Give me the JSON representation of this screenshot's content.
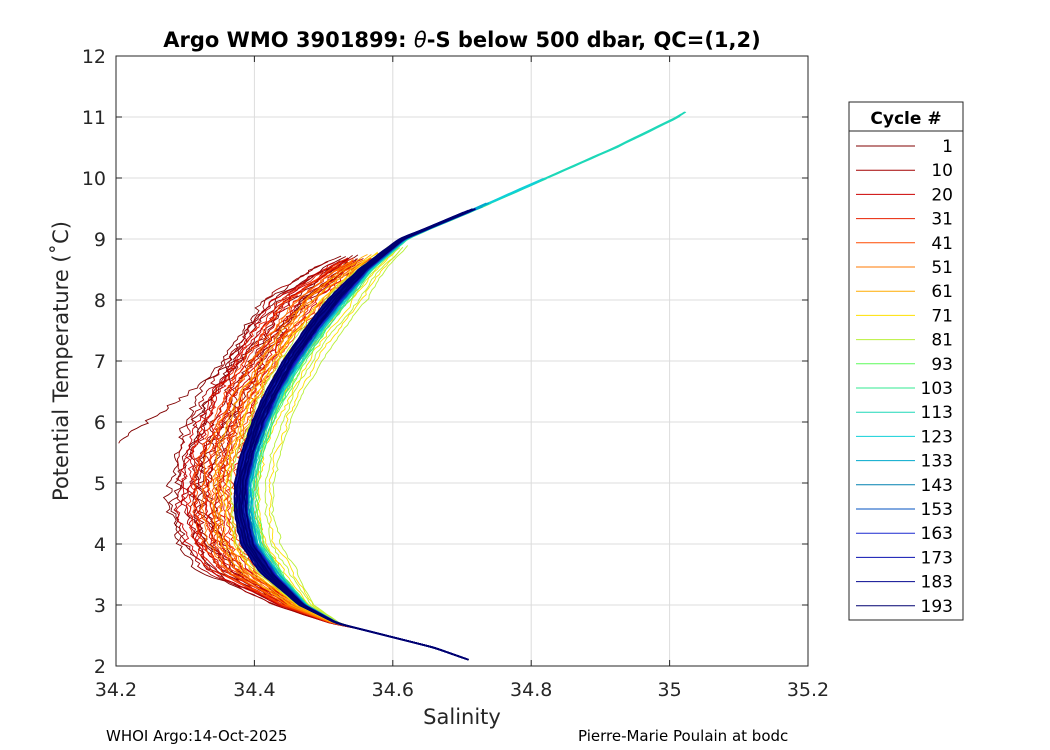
{
  "chart_data": {
    "type": "line",
    "title_prefix": "Argo WMO 3901899: ",
    "title_theta": "θ",
    "title_suffix": "-S below 500 dbar,  QC=(1,2)",
    "xlabel": "Salinity",
    "ylabel": "Potential Temperature (˚C)",
    "xlim": [
      34.2,
      35.2
    ],
    "ylim": [
      2,
      12
    ],
    "xticks": [
      34.2,
      34.4,
      34.6,
      34.8,
      35,
      35.2
    ],
    "xtick_labels": [
      "34.2",
      "34.4",
      "34.6",
      "34.8",
      "35",
      "35.2"
    ],
    "yticks": [
      2,
      3,
      4,
      5,
      6,
      7,
      8,
      9,
      10,
      11,
      12
    ],
    "ytick_labels": [
      "2",
      "3",
      "4",
      "5",
      "6",
      "7",
      "8",
      "9",
      "10",
      "11",
      "12"
    ],
    "grid": true,
    "legend_title": "Cycle #",
    "legend_position": "right-outside",
    "series": [
      {
        "name": "1",
        "color": "#800000",
        "s_min": 34.39,
        "t_top": 8.75,
        "offset": -0.075,
        "noise": 0.02,
        "outlier": true
      },
      {
        "name": "10",
        "color": "#a30000",
        "s_min": 34.39,
        "t_top": 8.7,
        "offset": -0.07,
        "noise": 0.018
      },
      {
        "name": "20",
        "color": "#cc0000",
        "s_min": 34.39,
        "t_top": 8.7,
        "offset": -0.06,
        "noise": 0.016
      },
      {
        "name": "31",
        "color": "#e82000",
        "s_min": 34.39,
        "t_top": 8.7,
        "offset": -0.05,
        "noise": 0.015
      },
      {
        "name": "41",
        "color": "#ff4a00",
        "s_min": 34.39,
        "t_top": 8.7,
        "offset": -0.04,
        "noise": 0.014
      },
      {
        "name": "51",
        "color": "#ff7a00",
        "s_min": 34.39,
        "t_top": 8.7,
        "offset": -0.03,
        "noise": 0.012
      },
      {
        "name": "61",
        "color": "#ffab00",
        "s_min": 34.39,
        "t_top": 8.8,
        "offset": -0.015,
        "noise": 0.01
      },
      {
        "name": "71",
        "color": "#ffe000",
        "s_min": 34.39,
        "t_top": 8.8,
        "offset": 0.005,
        "noise": 0.008
      },
      {
        "name": "81",
        "color": "#b8f03a",
        "s_min": 34.39,
        "t_top": 8.9,
        "offset": 0.012,
        "noise": 0.006
      },
      {
        "name": "93",
        "color": "#5dfb5a",
        "s_min": 34.39,
        "t_top": 9.6,
        "offset": 0.01,
        "noise": 0.005
      },
      {
        "name": "103",
        "color": "#30e890",
        "s_min": 34.39,
        "t_top": 10.0,
        "offset": 0.008,
        "noise": 0.004
      },
      {
        "name": "113",
        "color": "#1ed8b8",
        "s_min": 34.39,
        "t_top": 11.1,
        "offset": 0.006,
        "noise": 0.004
      },
      {
        "name": "123",
        "color": "#10d0d8",
        "s_min": 34.39,
        "t_top": 10.0,
        "offset": 0.004,
        "noise": 0.004
      },
      {
        "name": "133",
        "color": "#00a8cc",
        "s_min": 34.39,
        "t_top": 9.6,
        "offset": 0.002,
        "noise": 0.003
      },
      {
        "name": "143",
        "color": "#0080b0",
        "s_min": 34.39,
        "t_top": 9.5,
        "offset": 0.0,
        "noise": 0.003
      },
      {
        "name": "153",
        "color": "#0050c0",
        "s_min": 34.39,
        "t_top": 9.5,
        "offset": -0.002,
        "noise": 0.003
      },
      {
        "name": "163",
        "color": "#1a28d0",
        "s_min": 34.39,
        "t_top": 9.5,
        "offset": -0.003,
        "noise": 0.003
      },
      {
        "name": "173",
        "color": "#0a10b0",
        "s_min": 34.39,
        "t_top": 9.5,
        "offset": -0.004,
        "noise": 0.003
      },
      {
        "name": "183",
        "color": "#050890",
        "s_min": 34.39,
        "t_top": 9.5,
        "offset": -0.005,
        "noise": 0.003
      },
      {
        "name": "193",
        "color": "#000070",
        "s_min": 34.39,
        "t_top": 9.5,
        "offset": -0.006,
        "noise": 0.003
      }
    ],
    "mean_curve": {
      "theta": [
        2.1,
        2.3,
        2.5,
        2.7,
        3.0,
        3.5,
        4.0,
        4.5,
        5.0,
        5.5,
        6.0,
        6.5,
        7.0,
        7.5,
        8.0,
        8.5,
        9.0,
        9.5,
        10.0,
        10.5,
        11.0,
        11.15
      ],
      "salinity": [
        34.71,
        34.66,
        34.59,
        34.52,
        34.47,
        34.425,
        34.395,
        34.385,
        34.385,
        34.395,
        34.41,
        34.43,
        34.455,
        34.485,
        34.52,
        34.56,
        34.615,
        34.72,
        34.82,
        34.92,
        35.01,
        35.03
      ]
    }
  },
  "footer": {
    "left": "WHOI Argo:14-Oct-2025",
    "right": "Pierre-Marie Poulain at bodc"
  }
}
